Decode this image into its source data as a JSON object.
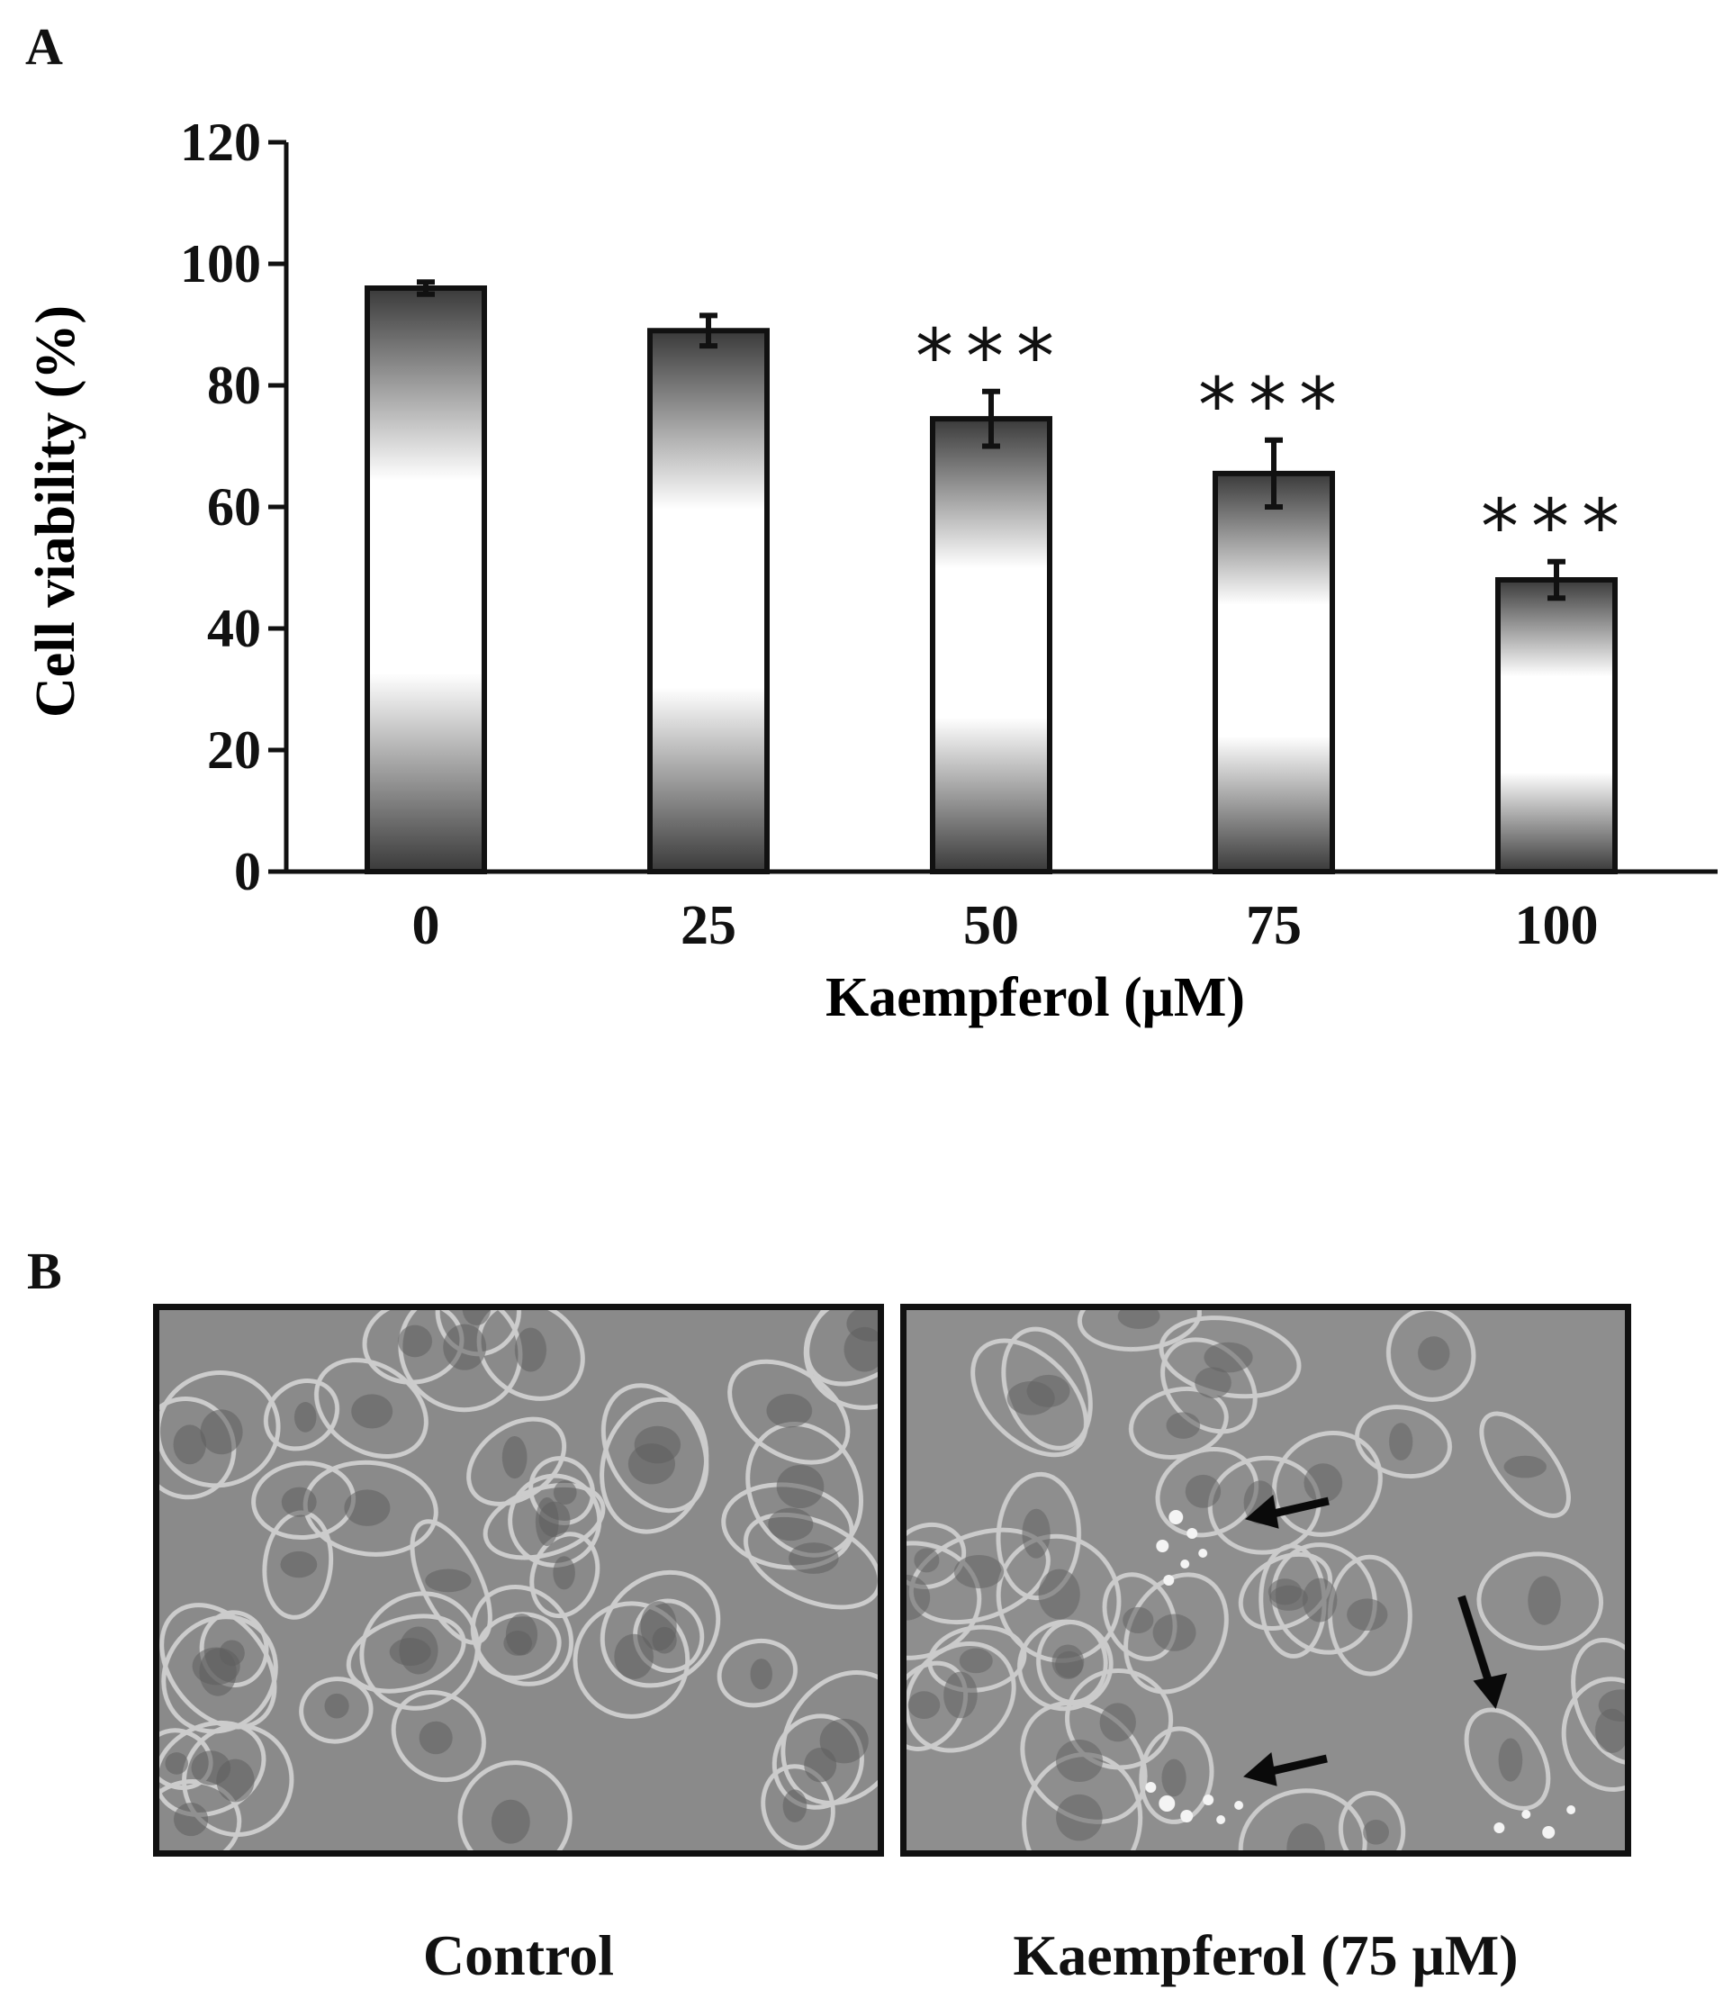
{
  "panels": {
    "a": "A",
    "b": "B"
  },
  "chart_data": {
    "type": "bar",
    "xlabel": "Kaempferol (μM)",
    "ylabel": "Cell viability (%)",
    "categories": [
      "0",
      "25",
      "50",
      "75",
      "100"
    ],
    "values": [
      96,
      89,
      74.5,
      65.5,
      48
    ],
    "error": [
      1,
      2.5,
      4.5,
      5.5,
      3
    ],
    "significance": [
      "",
      "",
      "***",
      "***",
      "***"
    ],
    "ylim": [
      0,
      120
    ],
    "yticks": [
      "0",
      "20",
      "40",
      "60",
      "80",
      "100",
      "120"
    ],
    "grid": false,
    "bar_fill": "gradient dark-white-dark",
    "colors": {
      "bar_dark": "#3a3a3a",
      "bar_light": "#ffffff",
      "axis": "#111111"
    }
  },
  "images": {
    "left_caption": "Control",
    "right_caption": "Kaempferol (75 μM)",
    "left_subject": "phase-contrast micrograph of cells",
    "right_subject": "phase-contrast micrograph of treated cells with vacuoles, arrows marking vacuoles"
  }
}
